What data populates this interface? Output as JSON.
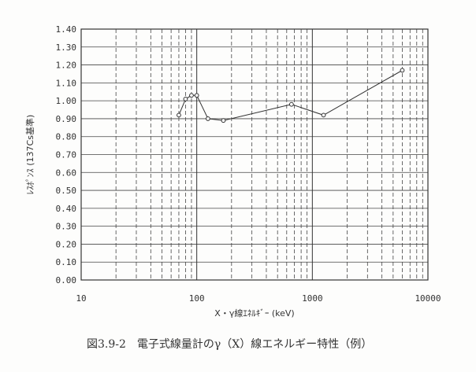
{
  "caption": "図3.9-2　電子式線量計のγ（X）線エネルギー特性（例）",
  "chart_data": {
    "type": "line",
    "xlabel": "X・γ線ｴﾈﾙｷﾞｰ (keV)",
    "ylabel": "ﾚｽﾎﾟﾝｽ (137Cs基準)",
    "xscale": "log",
    "xlim": [
      10,
      10000
    ],
    "ylim": [
      0,
      1.4
    ],
    "x_tick_labels": [
      "10",
      "100",
      "1000",
      "10000"
    ],
    "y_tick_labels": [
      "0.00",
      "0.10",
      "0.20",
      "0.30",
      "0.40",
      "0.50",
      "0.60",
      "0.70",
      "0.80",
      "0.90",
      "1.00",
      "1.10",
      "1.20",
      "1.30",
      "1.40"
    ],
    "grid": true,
    "series": [
      {
        "color": "#333333",
        "points": [
          {
            "x": 70,
            "y": 0.92
          },
          {
            "x": 80,
            "y": 1.01
          },
          {
            "x": 90,
            "y": 1.03
          },
          {
            "x": 100,
            "y": 1.03
          },
          {
            "x": 125,
            "y": 0.9
          },
          {
            "x": 170,
            "y": 0.89
          },
          {
            "x": 660,
            "y": 0.98
          },
          {
            "x": 1250,
            "y": 0.92
          },
          {
            "x": 6000,
            "y": 1.17
          }
        ]
      }
    ]
  }
}
